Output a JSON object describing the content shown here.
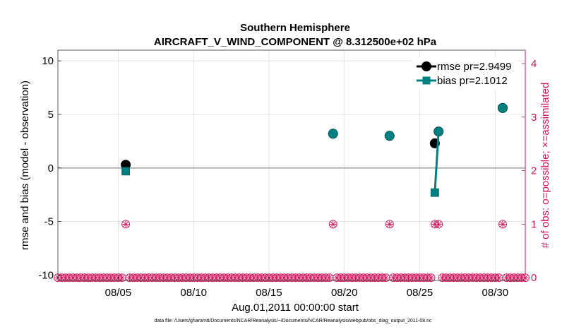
{
  "chart_data": {
    "type": "line",
    "title": "Southern Hemisphere",
    "subtitle": "AIRCRAFT_V_WIND_COMPONENT @ 8.312500e+02 hPa",
    "xlabel": "Aug.01,2011 00:00:00 start",
    "ylabel": "rmse and bias (model - observation)",
    "y2label": "# of obs: o=possible; ×=assimilated",
    "xlim": [
      1,
      32
    ],
    "ylim": [
      -10.5,
      11
    ],
    "y2lim": [
      -0.05,
      4.25
    ],
    "x_ticks": [
      5,
      10,
      15,
      20,
      25,
      30
    ],
    "x_tick_labels": [
      "08/05",
      "08/10",
      "08/15",
      "08/20",
      "08/25",
      "08/30"
    ],
    "y_ticks": [
      -10,
      -5,
      0,
      5,
      10
    ],
    "y_tick_labels": [
      "-10",
      "-5",
      "0",
      "5",
      "10"
    ],
    "y2_ticks": [
      0,
      1,
      2,
      3,
      4
    ],
    "y2_tick_labels": [
      "0",
      "1",
      "2",
      "3",
      "4"
    ],
    "series": [
      {
        "name": "rmse pr=2.9499",
        "color": "#000000",
        "marker": "circle",
        "x": [
          5.5,
          19.25,
          23.0,
          26.0,
          26.25,
          30.5
        ],
        "values": [
          0.3,
          3.2,
          3.0,
          2.3,
          3.4,
          5.6
        ]
      },
      {
        "name": "bias pr=2.1012",
        "color": "#008080",
        "marker": "square",
        "x": [
          5.5,
          19.25,
          23.0,
          26.0,
          26.25,
          30.5
        ],
        "values": [
          -0.3,
          3.2,
          3.0,
          -2.3,
          3.4,
          5.6
        ],
        "segments": [
          [
            3,
            4
          ]
        ]
      }
    ],
    "obs_possible_count_at_x": [
      5.5,
      19.25,
      23.0,
      26.0,
      26.25,
      30.5
    ],
    "obs_count_value": 1,
    "zero_count_spacing_days": 0.25,
    "colors": {
      "rmse": "#000000",
      "bias": "#008080",
      "obs": "#d1165c",
      "zero_line": "#b3b3b3",
      "grid": "#dddddd"
    }
  },
  "footnote": "data file: /Users/gharamti/Documents/NCAR/Reanalysis/~/Documents/NCAR/Reanalysis/webpub/obs_diag_output_2011-08.nc"
}
